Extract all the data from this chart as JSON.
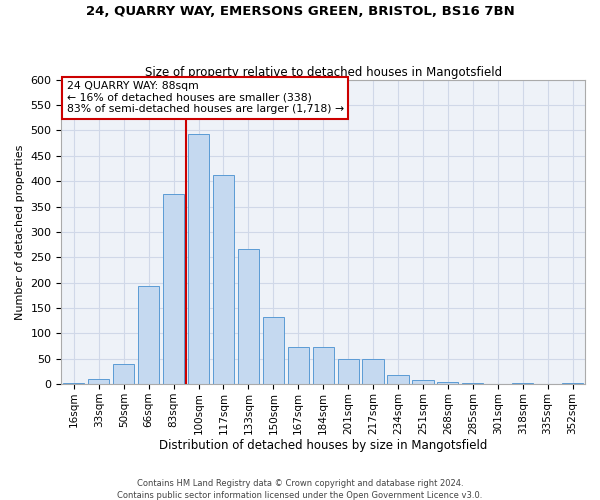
{
  "title1": "24, QUARRY WAY, EMERSONS GREEN, BRISTOL, BS16 7BN",
  "title2": "Size of property relative to detached houses in Mangotsfield",
  "xlabel": "Distribution of detached houses by size in Mangotsfield",
  "ylabel": "Number of detached properties",
  "categories": [
    "16sqm",
    "33sqm",
    "50sqm",
    "66sqm",
    "83sqm",
    "100sqm",
    "117sqm",
    "133sqm",
    "150sqm",
    "167sqm",
    "184sqm",
    "201sqm",
    "217sqm",
    "234sqm",
    "251sqm",
    "268sqm",
    "285sqm",
    "301sqm",
    "318sqm",
    "335sqm",
    "352sqm"
  ],
  "values": [
    3,
    10,
    40,
    193,
    375,
    492,
    413,
    267,
    133,
    73,
    73,
    50,
    50,
    18,
    8,
    5,
    3,
    0,
    3,
    0,
    3
  ],
  "bar_color": "#c5d9f0",
  "bar_edge_color": "#5b9bd5",
  "annotation_label": "24 QUARRY WAY: 88sqm",
  "annotation_line1": "← 16% of detached houses are smaller (338)",
  "annotation_line2": "83% of semi-detached houses are larger (1,718) →",
  "vline_x": 4.5,
  "vline_color": "#cc0000",
  "annotation_box_facecolor": "#ffffff",
  "annotation_box_edgecolor": "#cc0000",
  "grid_color": "#d0d8e8",
  "plot_bg_color": "#eef2f8",
  "footer1": "Contains HM Land Registry data © Crown copyright and database right 2024.",
  "footer2": "Contains public sector information licensed under the Open Government Licence v3.0.",
  "ylim": [
    0,
    600
  ],
  "yticks": [
    0,
    50,
    100,
    150,
    200,
    250,
    300,
    350,
    400,
    450,
    500,
    550,
    600
  ]
}
